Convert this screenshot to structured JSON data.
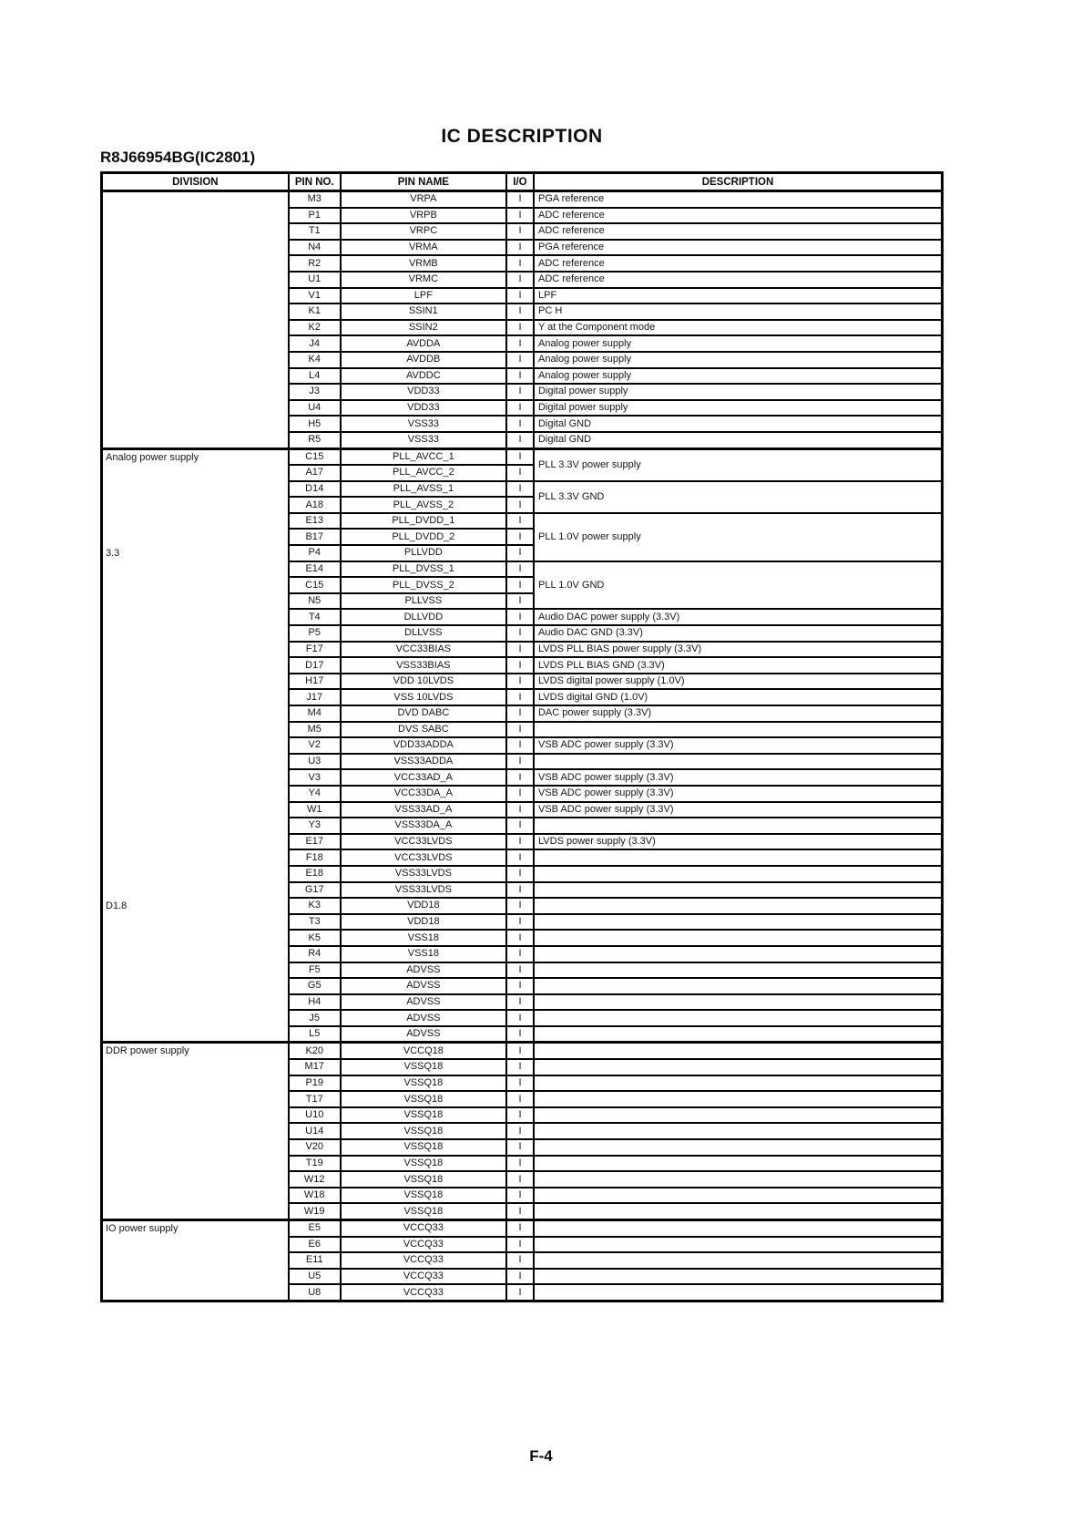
{
  "page": {
    "title": "IC DESCRIPTION",
    "subtitle": "R8J66954BG(IC2801)",
    "footer": "F-4"
  },
  "colors": {
    "background": "#ffffff",
    "text": "#161616",
    "border": "#000000"
  },
  "table": {
    "headers": [
      "DIVISION",
      "PIN NO.",
      "PIN NAME",
      "I/O",
      "DESCRIPTION"
    ],
    "sections": [
      {
        "division_labels": [],
        "rows": [
          {
            "pin": "M3",
            "name": "VRPA",
            "io": "I",
            "desc": "PGA reference"
          },
          {
            "pin": "P1",
            "name": "VRPB",
            "io": "I",
            "desc": "ADC reference"
          },
          {
            "pin": "T1",
            "name": "VRPC",
            "io": "I",
            "desc": "ADC reference"
          },
          {
            "pin": "N4",
            "name": "VRMA",
            "io": "I",
            "desc": "PGA reference"
          },
          {
            "pin": "R2",
            "name": "VRMB",
            "io": "I",
            "desc": "ADC reference"
          },
          {
            "pin": "U1",
            "name": "VRMC",
            "io": "I",
            "desc": "ADC reference"
          },
          {
            "pin": "V1",
            "name": "LPF",
            "io": "I",
            "desc": "LPF"
          },
          {
            "pin": "K1",
            "name": "SSIN1",
            "io": "I",
            "desc": "PC H"
          },
          {
            "pin": "K2",
            "name": "SSIN2",
            "io": "I",
            "desc": "Y at the Component mode"
          },
          {
            "pin": "J4",
            "name": "AVDDA",
            "io": "I",
            "desc": "Analog power supply"
          },
          {
            "pin": "K4",
            "name": "AVDDB",
            "io": "I",
            "desc": "Analog power supply"
          },
          {
            "pin": "L4",
            "name": "AVDDC",
            "io": "I",
            "desc": "Analog power supply"
          },
          {
            "pin": "J3",
            "name": "VDD33",
            "io": "I",
            "desc": "Digital power supply"
          },
          {
            "pin": "U4",
            "name": "VDD33",
            "io": "I",
            "desc": "Digital power supply"
          },
          {
            "pin": "H5",
            "name": "VSS33",
            "io": "I",
            "desc": "Digital GND"
          },
          {
            "pin": "R5",
            "name": "VSS33",
            "io": "I",
            "desc": "Digital GND"
          }
        ]
      },
      {
        "division_labels": [
          {
            "text": "Analog power supply",
            "row": 0
          },
          {
            "text": "3.3",
            "row": 6
          },
          {
            "text": "D1.8",
            "row": 28
          }
        ],
        "rows": [
          {
            "pin": "C15",
            "name": "PLL_AVCC_1",
            "io": "I",
            "desc": "PLL 3.3V power supply",
            "desc_span": 2
          },
          {
            "pin": "A17",
            "name": "PLL_AVCC_2",
            "io": "I",
            "desc_merged": true
          },
          {
            "pin": "D14",
            "name": "PLL_AVSS_1",
            "io": "I",
            "desc": "PLL 3.3V GND",
            "desc_span": 2
          },
          {
            "pin": "A18",
            "name": "PLL_AVSS_2",
            "io": "I",
            "desc_merged": true
          },
          {
            "pin": "E13",
            "name": "PLL_DVDD_1",
            "io": "I",
            "desc": "PLL 1.0V power supply",
            "desc_span": 3
          },
          {
            "pin": "B17",
            "name": "PLL_DVDD_2",
            "io": "I",
            "desc_merged": true
          },
          {
            "pin": "P4",
            "name": "PLLVDD",
            "io": "I",
            "desc_merged": true
          },
          {
            "pin": "E14",
            "name": "PLL_DVSS_1",
            "io": "I",
            "desc": "PLL 1.0V GND",
            "desc_span": 3
          },
          {
            "pin": "C15",
            "name": "PLL_DVSS_2",
            "io": "I",
            "desc_merged": true
          },
          {
            "pin": "N5",
            "name": "PLLVSS",
            "io": "I",
            "desc_merged": true
          },
          {
            "pin": "T4",
            "name": "DLLVDD",
            "io": "I",
            "desc": "Audio DAC power supply (3.3V)"
          },
          {
            "pin": "P5",
            "name": "DLLVSS",
            "io": "I",
            "desc": "Audio DAC GND (3.3V)"
          },
          {
            "pin": "F17",
            "name": "VCC33BIAS",
            "io": "I",
            "desc": "LVDS PLL BIAS power supply (3.3V)"
          },
          {
            "pin": "D17",
            "name": "VSS33BIAS",
            "io": "I",
            "desc": "LVDS PLL BIAS GND (3.3V)"
          },
          {
            "pin": "H17",
            "name": "VDD 10LVDS",
            "io": "I",
            "desc": "LVDS digital power supply (1.0V)"
          },
          {
            "pin": "J17",
            "name": "VSS 10LVDS",
            "io": "I",
            "desc": "LVDS digital GND (1.0V)"
          },
          {
            "pin": "M4",
            "name": "DVD DABC",
            "io": "I",
            "desc": "DAC power supply (3.3V)"
          },
          {
            "pin": "M5",
            "name": "DVS SABC",
            "io": "I",
            "desc": ""
          },
          {
            "pin": "V2",
            "name": "VDD33ADDA",
            "io": "I",
            "desc": "VSB ADC power supply (3.3V)"
          },
          {
            "pin": "U3",
            "name": "VSS33ADDA",
            "io": "I",
            "desc": ""
          },
          {
            "pin": "V3",
            "name": "VCC33AD_A",
            "io": "I",
            "desc": "VSB ADC power supply (3.3V)"
          },
          {
            "pin": "Y4",
            "name": "VCC33DA_A",
            "io": "I",
            "desc": "VSB ADC power supply (3.3V)"
          },
          {
            "pin": "W1",
            "name": "VSS33AD_A",
            "io": "I",
            "desc": "VSB ADC power supply (3.3V)"
          },
          {
            "pin": "Y3",
            "name": "VSS33DA_A",
            "io": "I",
            "desc": ""
          },
          {
            "pin": "E17",
            "name": "VCC33LVDS",
            "io": "I",
            "desc": "LVDS power supply (3.3V)"
          },
          {
            "pin": "F18",
            "name": "VCC33LVDS",
            "io": "I",
            "desc": ""
          },
          {
            "pin": "E18",
            "name": "VSS33LVDS",
            "io": "I",
            "desc": ""
          },
          {
            "pin": "G17",
            "name": "VSS33LVDS",
            "io": "I",
            "desc": ""
          },
          {
            "pin": "K3",
            "name": "VDD18",
            "io": "I",
            "desc": ""
          },
          {
            "pin": "T3",
            "name": "VDD18",
            "io": "I",
            "desc": ""
          },
          {
            "pin": "K5",
            "name": "VSS18",
            "io": "I",
            "desc": ""
          },
          {
            "pin": "R4",
            "name": "VSS18",
            "io": "I",
            "desc": ""
          },
          {
            "pin": "F5",
            "name": "ADVSS",
            "io": "I",
            "desc": ""
          },
          {
            "pin": "G5",
            "name": "ADVSS",
            "io": "I",
            "desc": ""
          },
          {
            "pin": "H4",
            "name": "ADVSS",
            "io": "I",
            "desc": ""
          },
          {
            "pin": "J5",
            "name": "ADVSS",
            "io": "I",
            "desc": ""
          },
          {
            "pin": "L5",
            "name": "ADVSS",
            "io": "I",
            "desc": ""
          }
        ]
      },
      {
        "division_labels": [
          {
            "text": "DDR power supply",
            "row": 0
          }
        ],
        "rows": [
          {
            "pin": "K20",
            "name": "VCCQ18",
            "io": "I",
            "desc": ""
          },
          {
            "pin": "M17",
            "name": "VSSQ18",
            "io": "I",
            "desc": ""
          },
          {
            "pin": "P19",
            "name": "VSSQ18",
            "io": "I",
            "desc": ""
          },
          {
            "pin": "T17",
            "name": "VSSQ18",
            "io": "I",
            "desc": ""
          },
          {
            "pin": "U10",
            "name": "VSSQ18",
            "io": "I",
            "desc": ""
          },
          {
            "pin": "U14",
            "name": "VSSQ18",
            "io": "I",
            "desc": ""
          },
          {
            "pin": "V20",
            "name": "VSSQ18",
            "io": "I",
            "desc": ""
          },
          {
            "pin": "T19",
            "name": "VSSQ18",
            "io": "I",
            "desc": ""
          },
          {
            "pin": "W12",
            "name": "VSSQ18",
            "io": "I",
            "desc": ""
          },
          {
            "pin": "W18",
            "name": "VSSQ18",
            "io": "I",
            "desc": ""
          },
          {
            "pin": "W19",
            "name": "VSSQ18",
            "io": "I",
            "desc": ""
          }
        ]
      },
      {
        "division_labels": [
          {
            "text": "IO power supply",
            "row": 0
          }
        ],
        "rows": [
          {
            "pin": "E5",
            "name": "VCCQ33",
            "io": "I",
            "desc": ""
          },
          {
            "pin": "E6",
            "name": "VCCQ33",
            "io": "I",
            "desc": ""
          },
          {
            "pin": "E11",
            "name": "VCCQ33",
            "io": "I",
            "desc": ""
          },
          {
            "pin": "U5",
            "name": "VCCQ33",
            "io": "I",
            "desc": ""
          },
          {
            "pin": "U8",
            "name": "VCCQ33",
            "io": "I",
            "desc": ""
          }
        ]
      }
    ]
  }
}
